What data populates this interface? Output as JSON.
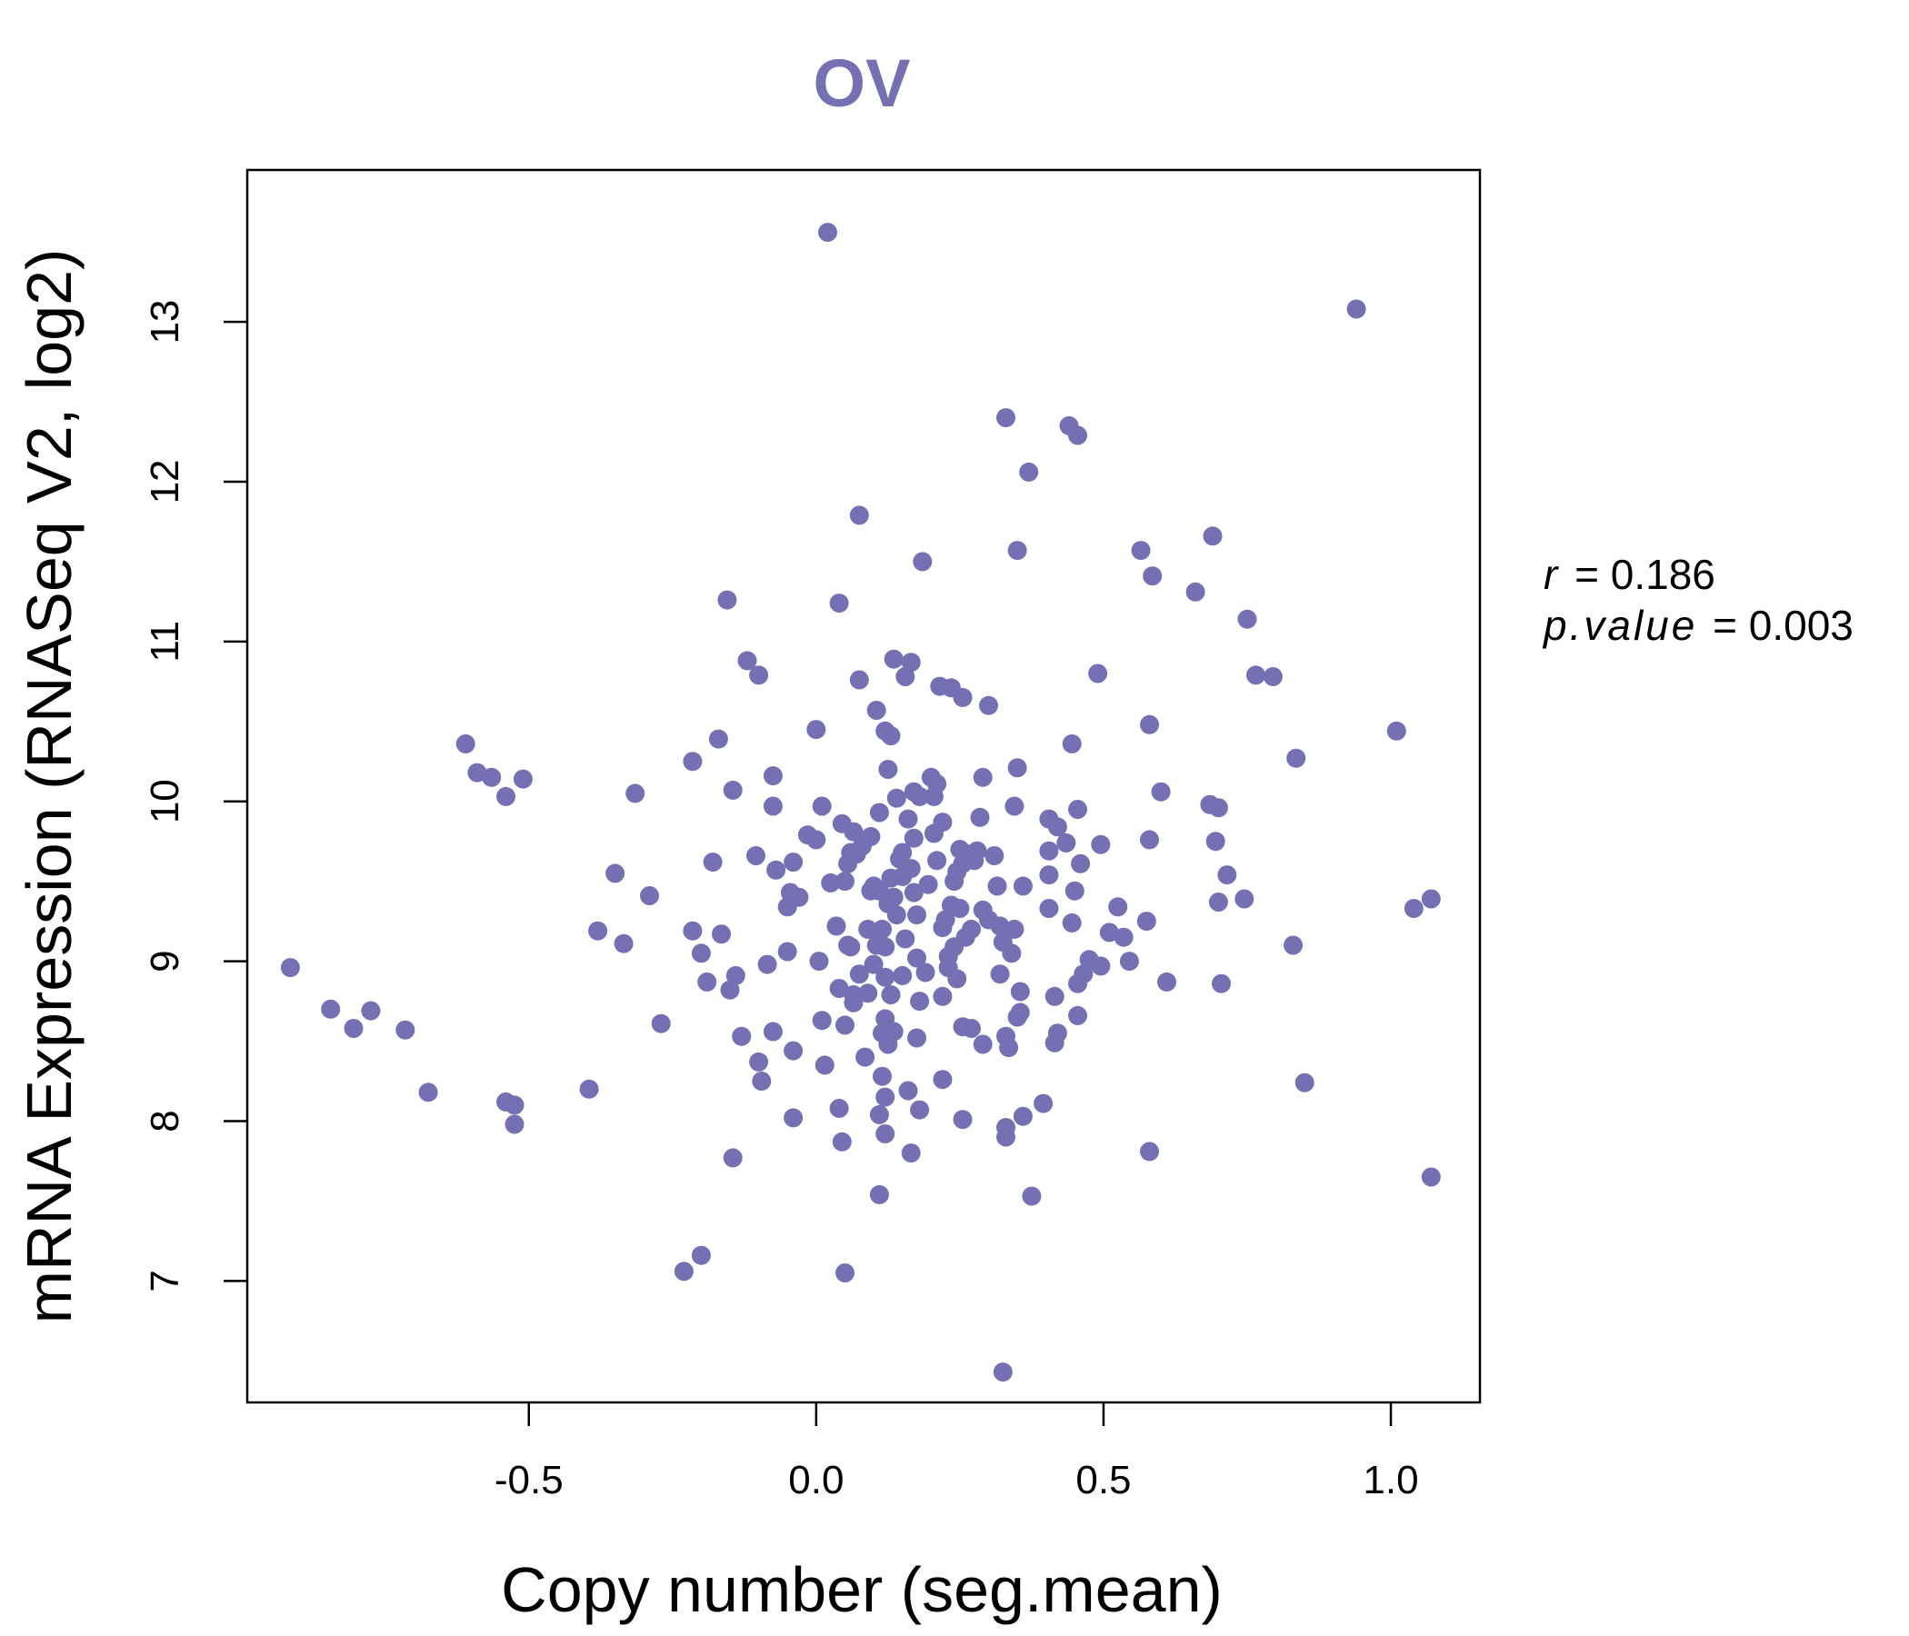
{
  "chart_data": {
    "type": "scatter",
    "title": "OV",
    "xlabel": "Copy number (seg.mean)",
    "ylabel": "mRNA Expression (RNASeq V2, log2)",
    "xlim": [
      -0.99,
      1.155
    ],
    "ylim": [
      6.24,
      13.95
    ],
    "x_ticks": [
      -0.5,
      0.0,
      0.5,
      1.0
    ],
    "x_tick_labels": [
      "-0.5",
      "0.0",
      "0.5",
      "1.0"
    ],
    "y_ticks": [
      7,
      8,
      9,
      10,
      11,
      12,
      13
    ],
    "y_tick_labels": [
      "7",
      "8",
      "9",
      "10",
      "11",
      "12",
      "13"
    ],
    "grid": false,
    "point_color": "#7570b3",
    "title_color": "#7570b3",
    "stats": {
      "r_label": "r",
      "r_value": "0.186",
      "p_label": "p.value",
      "p_value": "0.003"
    },
    "series": [
      {
        "points": [
          [
            -0.915,
            8.96
          ],
          [
            -0.845,
            8.7
          ],
          [
            -0.805,
            8.58
          ],
          [
            -0.775,
            8.69
          ],
          [
            -0.715,
            8.57
          ],
          [
            -0.675,
            8.18
          ],
          [
            -0.61,
            10.36
          ],
          [
            -0.59,
            10.18
          ],
          [
            -0.565,
            10.15
          ],
          [
            -0.54,
            10.03
          ],
          [
            -0.51,
            10.14
          ],
          [
            -0.54,
            8.12
          ],
          [
            -0.525,
            8.1
          ],
          [
            -0.525,
            7.98
          ],
          [
            -0.395,
            8.2
          ],
          [
            -0.38,
            9.19
          ],
          [
            -0.35,
            9.55
          ],
          [
            -0.335,
            9.11
          ],
          [
            -0.315,
            10.05
          ],
          [
            -0.29,
            9.41
          ],
          [
            -0.27,
            8.61
          ],
          [
            -0.23,
            7.06
          ],
          [
            -0.215,
            9.19
          ],
          [
            -0.215,
            10.25
          ],
          [
            -0.2,
            7.16
          ],
          [
            -0.2,
            9.05
          ],
          [
            -0.19,
            8.87
          ],
          [
            -0.18,
            9.62
          ],
          [
            -0.17,
            10.39
          ],
          [
            -0.165,
            9.17
          ],
          [
            -0.155,
            11.26
          ],
          [
            -0.15,
            8.82
          ],
          [
            -0.145,
            10.07
          ],
          [
            -0.145,
            7.77
          ],
          [
            -0.14,
            8.91
          ],
          [
            -0.13,
            8.53
          ],
          [
            -0.12,
            10.88
          ],
          [
            -0.1,
            10.79
          ],
          [
            -0.105,
            9.66
          ],
          [
            -0.1,
            8.37
          ],
          [
            -0.095,
            8.25
          ],
          [
            -0.085,
            8.98
          ],
          [
            -0.075,
            10.16
          ],
          [
            -0.075,
            9.97
          ],
          [
            -0.075,
            8.56
          ],
          [
            -0.07,
            9.57
          ],
          [
            -0.05,
            9.34
          ],
          [
            -0.05,
            9.06
          ],
          [
            -0.045,
            9.43
          ],
          [
            -0.04,
            9.62
          ],
          [
            -0.04,
            8.44
          ],
          [
            -0.04,
            8.02
          ],
          [
            -0.03,
            9.4
          ],
          [
            -0.015,
            9.79
          ],
          [
            0.0,
            10.45
          ],
          [
            0.0,
            9.76
          ],
          [
            0.005,
            9.0
          ],
          [
            0.01,
            9.97
          ],
          [
            0.01,
            8.63
          ],
          [
            0.015,
            8.35
          ],
          [
            0.02,
            13.56
          ],
          [
            0.025,
            9.49
          ],
          [
            0.035,
            9.22
          ],
          [
            0.04,
            11.24
          ],
          [
            0.04,
            8.08
          ],
          [
            0.04,
            8.83
          ],
          [
            0.045,
            9.86
          ],
          [
            0.045,
            7.87
          ],
          [
            0.05,
            9.5
          ],
          [
            0.05,
            8.6
          ],
          [
            0.05,
            7.05
          ],
          [
            0.055,
            9.61
          ],
          [
            0.055,
            9.1
          ],
          [
            0.06,
            9.68
          ],
          [
            0.06,
            9.09
          ],
          [
            0.065,
            9.81
          ],
          [
            0.065,
            8.79
          ],
          [
            0.065,
            8.74
          ],
          [
            0.07,
            9.67
          ],
          [
            0.075,
            11.79
          ],
          [
            0.075,
            10.76
          ],
          [
            0.075,
            8.92
          ],
          [
            0.08,
            9.72
          ],
          [
            0.085,
            8.4
          ],
          [
            0.09,
            9.2
          ],
          [
            0.09,
            8.8
          ],
          [
            0.095,
            9.78
          ],
          [
            0.095,
            9.44
          ],
          [
            0.1,
            9.47
          ],
          [
            0.1,
            8.98
          ],
          [
            0.105,
            10.57
          ],
          [
            0.105,
            9.1
          ],
          [
            0.11,
            9.93
          ],
          [
            0.11,
            9.44
          ],
          [
            0.11,
            8.04
          ],
          [
            0.11,
            7.54
          ],
          [
            0.115,
            9.2
          ],
          [
            0.115,
            8.55
          ],
          [
            0.115,
            8.28
          ],
          [
            0.12,
            10.44
          ],
          [
            0.12,
            9.09
          ],
          [
            0.12,
            8.9
          ],
          [
            0.12,
            8.64
          ],
          [
            0.12,
            8.15
          ],
          [
            0.12,
            7.92
          ],
          [
            0.125,
            10.2
          ],
          [
            0.125,
            9.36
          ],
          [
            0.125,
            8.48
          ],
          [
            0.13,
            10.41
          ],
          [
            0.13,
            9.52
          ],
          [
            0.13,
            8.79
          ],
          [
            0.135,
            10.89
          ],
          [
            0.135,
            9.4
          ],
          [
            0.135,
            8.56
          ],
          [
            0.14,
            10.02
          ],
          [
            0.14,
            9.29
          ],
          [
            0.145,
            9.64
          ],
          [
            0.15,
            9.68
          ],
          [
            0.15,
            9.53
          ],
          [
            0.15,
            8.91
          ],
          [
            0.155,
            10.78
          ],
          [
            0.155,
            9.14
          ],
          [
            0.16,
            9.89
          ],
          [
            0.16,
            8.19
          ],
          [
            0.165,
            10.87
          ],
          [
            0.165,
            9.58
          ],
          [
            0.165,
            7.8
          ],
          [
            0.17,
            10.06
          ],
          [
            0.17,
            9.77
          ],
          [
            0.17,
            9.43
          ],
          [
            0.175,
            9.29
          ],
          [
            0.175,
            9.02
          ],
          [
            0.175,
            8.52
          ],
          [
            0.18,
            10.03
          ],
          [
            0.18,
            8.75
          ],
          [
            0.18,
            8.07
          ],
          [
            0.185,
            11.5
          ],
          [
            0.19,
            8.93
          ],
          [
            0.195,
            9.48
          ],
          [
            0.2,
            10.15
          ],
          [
            0.205,
            10.03
          ],
          [
            0.205,
            9.8
          ],
          [
            0.21,
            10.11
          ],
          [
            0.21,
            9.63
          ],
          [
            0.215,
            10.72
          ],
          [
            0.22,
            9.87
          ],
          [
            0.22,
            9.21
          ],
          [
            0.22,
            8.78
          ],
          [
            0.22,
            8.26
          ],
          [
            0.225,
            9.26
          ],
          [
            0.23,
            9.03
          ],
          [
            0.23,
            8.96
          ],
          [
            0.235,
            10.71
          ],
          [
            0.235,
            9.35
          ],
          [
            0.24,
            9.5
          ],
          [
            0.24,
            9.09
          ],
          [
            0.245,
            9.56
          ],
          [
            0.245,
            8.89
          ],
          [
            0.25,
            9.7
          ],
          [
            0.25,
            9.33
          ],
          [
            0.255,
            10.65
          ],
          [
            0.255,
            9.61
          ],
          [
            0.255,
            8.59
          ],
          [
            0.255,
            8.01
          ],
          [
            0.26,
            9.15
          ],
          [
            0.265,
            9.67
          ],
          [
            0.27,
            9.2
          ],
          [
            0.27,
            8.58
          ],
          [
            0.275,
            9.63
          ],
          [
            0.28,
            9.69
          ],
          [
            0.285,
            9.9
          ],
          [
            0.29,
            10.15
          ],
          [
            0.29,
            9.32
          ],
          [
            0.29,
            8.48
          ],
          [
            0.3,
            10.6
          ],
          [
            0.3,
            9.26
          ],
          [
            0.31,
            9.66
          ],
          [
            0.315,
            9.47
          ],
          [
            0.32,
            9.22
          ],
          [
            0.32,
            8.92
          ],
          [
            0.325,
            9.12
          ],
          [
            0.325,
            6.43
          ],
          [
            0.33,
            12.4
          ],
          [
            0.33,
            8.53
          ],
          [
            0.33,
            7.96
          ],
          [
            0.33,
            7.9
          ],
          [
            0.335,
            8.46
          ],
          [
            0.34,
            9.05
          ],
          [
            0.345,
            9.97
          ],
          [
            0.345,
            9.2
          ],
          [
            0.35,
            11.57
          ],
          [
            0.35,
            10.21
          ],
          [
            0.35,
            8.65
          ],
          [
            0.355,
            8.81
          ],
          [
            0.355,
            8.68
          ],
          [
            0.36,
            9.47
          ],
          [
            0.36,
            8.03
          ],
          [
            0.37,
            12.06
          ],
          [
            0.375,
            7.53
          ],
          [
            0.395,
            8.11
          ],
          [
            0.405,
            9.89
          ],
          [
            0.405,
            9.69
          ],
          [
            0.405,
            9.54
          ],
          [
            0.405,
            9.33
          ],
          [
            0.415,
            8.78
          ],
          [
            0.415,
            8.49
          ],
          [
            0.42,
            9.84
          ],
          [
            0.42,
            8.55
          ],
          [
            0.435,
            9.74
          ],
          [
            0.44,
            12.35
          ],
          [
            0.445,
            10.36
          ],
          [
            0.445,
            9.24
          ],
          [
            0.45,
            9.44
          ],
          [
            0.455,
            12.29
          ],
          [
            0.455,
            9.95
          ],
          [
            0.455,
            8.86
          ],
          [
            0.455,
            8.66
          ],
          [
            0.46,
            9.61
          ],
          [
            0.465,
            8.92
          ],
          [
            0.475,
            9.01
          ],
          [
            0.49,
            10.8
          ],
          [
            0.495,
            9.73
          ],
          [
            0.495,
            8.97
          ],
          [
            0.51,
            9.18
          ],
          [
            0.525,
            9.34
          ],
          [
            0.535,
            9.15
          ],
          [
            0.545,
            9.0
          ],
          [
            0.565,
            11.57
          ],
          [
            0.575,
            9.25
          ],
          [
            0.58,
            10.48
          ],
          [
            0.58,
            9.76
          ],
          [
            0.58,
            7.81
          ],
          [
            0.585,
            11.41
          ],
          [
            0.6,
            10.06
          ],
          [
            0.61,
            8.87
          ],
          [
            0.66,
            11.31
          ],
          [
            0.685,
            9.98
          ],
          [
            0.69,
            11.66
          ],
          [
            0.695,
            9.75
          ],
          [
            0.7,
            9.96
          ],
          [
            0.7,
            9.37
          ],
          [
            0.705,
            8.86
          ],
          [
            0.715,
            9.54
          ],
          [
            0.745,
            9.39
          ],
          [
            0.75,
            11.14
          ],
          [
            0.765,
            10.79
          ],
          [
            0.795,
            10.78
          ],
          [
            0.83,
            9.1
          ],
          [
            0.835,
            10.27
          ],
          [
            0.85,
            8.24
          ],
          [
            0.94,
            13.08
          ],
          [
            1.01,
            10.44
          ],
          [
            1.04,
            9.33
          ],
          [
            1.07,
            9.39
          ],
          [
            1.07,
            7.65
          ]
        ]
      }
    ]
  }
}
